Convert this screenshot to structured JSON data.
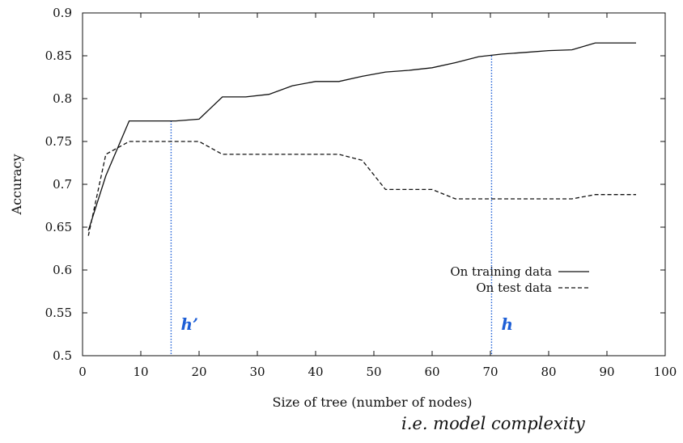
{
  "chart_data": {
    "type": "line",
    "title": "",
    "xlabel": "Size of tree (number of nodes)",
    "ylabel": "Accuracy",
    "xlim": [
      0,
      100
    ],
    "ylim": [
      0.5,
      0.9
    ],
    "x_ticks": [
      0,
      10,
      20,
      30,
      40,
      50,
      60,
      70,
      80,
      90,
      100
    ],
    "x_tick_labels": [
      "0",
      "10",
      "20",
      "30",
      "40",
      "50",
      "60",
      "70",
      "80",
      "90",
      "100"
    ],
    "y_ticks": [
      0.5,
      0.55,
      0.6,
      0.65,
      0.7,
      0.75,
      0.8,
      0.85,
      0.9
    ],
    "y_tick_labels": [
      "0.5",
      "0.55",
      "0.6",
      "0.65",
      "0.7",
      "0.75",
      "0.8",
      "0.85",
      "0.9"
    ],
    "grid": false,
    "legend_position": "right",
    "series": [
      {
        "name": "On training data",
        "style": "solid",
        "color": "#111111",
        "points": [
          [
            1,
            0.646
          ],
          [
            4,
            0.71
          ],
          [
            8,
            0.774
          ],
          [
            12,
            0.774
          ],
          [
            16,
            0.774
          ],
          [
            20,
            0.776
          ],
          [
            24,
            0.802
          ],
          [
            28,
            0.802
          ],
          [
            32,
            0.805
          ],
          [
            36,
            0.815
          ],
          [
            40,
            0.82
          ],
          [
            44,
            0.82
          ],
          [
            48,
            0.826
          ],
          [
            52,
            0.831
          ],
          [
            56,
            0.833
          ],
          [
            60,
            0.836
          ],
          [
            64,
            0.842
          ],
          [
            68,
            0.849
          ],
          [
            72,
            0.852
          ],
          [
            76,
            0.854
          ],
          [
            80,
            0.856
          ],
          [
            84,
            0.857
          ],
          [
            88,
            0.865
          ],
          [
            92,
            0.865
          ],
          [
            95,
            0.865
          ]
        ]
      },
      {
        "name": "On test data",
        "style": "dashed",
        "color": "#111111",
        "points": [
          [
            1,
            0.64
          ],
          [
            4,
            0.735
          ],
          [
            8,
            0.75
          ],
          [
            12,
            0.75
          ],
          [
            16,
            0.75
          ],
          [
            20,
            0.75
          ],
          [
            24,
            0.735
          ],
          [
            28,
            0.735
          ],
          [
            32,
            0.735
          ],
          [
            36,
            0.735
          ],
          [
            40,
            0.735
          ],
          [
            44,
            0.735
          ],
          [
            48,
            0.728
          ],
          [
            52,
            0.694
          ],
          [
            56,
            0.694
          ],
          [
            60,
            0.694
          ],
          [
            64,
            0.683
          ],
          [
            68,
            0.683
          ],
          [
            72,
            0.683
          ],
          [
            76,
            0.683
          ],
          [
            80,
            0.683
          ],
          [
            84,
            0.683
          ],
          [
            88,
            0.688
          ],
          [
            92,
            0.688
          ],
          [
            95,
            0.688
          ]
        ]
      }
    ],
    "annotations": [
      {
        "label": "h’",
        "x": 15.2,
        "color": "#1e5fd6"
      },
      {
        "label": "h",
        "x": 70.2,
        "color": "#1e5fd6"
      }
    ],
    "footnote": "i.e. model complexity"
  }
}
